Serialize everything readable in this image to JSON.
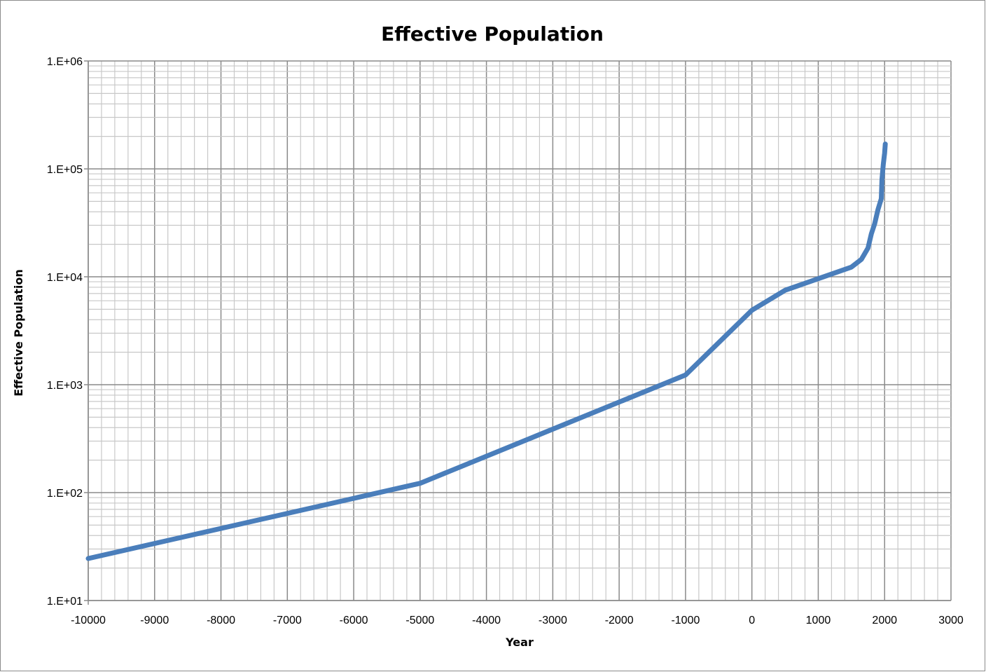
{
  "chart_data": {
    "type": "line",
    "title": "Effective Population",
    "xlabel": "Year",
    "ylabel": "Effective Population",
    "xlim": [
      -10000,
      3000
    ],
    "ylim": [
      10,
      1000000
    ],
    "yscale": "log",
    "grid": true,
    "legend": "none",
    "xticks": [
      "-10000",
      "-9000",
      "-8000",
      "-7000",
      "-6000",
      "-5000",
      "-4000",
      "-3000",
      "-2000",
      "-1000",
      "0",
      "1000",
      "2000",
      "3000"
    ],
    "yticks": [
      "1.E+01",
      "1.E+02",
      "1.E+03",
      "1.E+04",
      "1.E+05",
      "1.E+06"
    ],
    "series_color": "#4A7EBB",
    "x": [
      -10000,
      -5000,
      -1000,
      0,
      500,
      1000,
      1500,
      1650,
      1750,
      1800,
      1850,
      1900,
      1950,
      1960,
      1980,
      2000,
      2010
    ],
    "y": [
      24.5,
      122,
      1230,
      4900,
      7500,
      9600,
      12300,
      14500,
      18500,
      25000,
      31000,
      42000,
      53000,
      80000,
      110000,
      140000,
      170000
    ]
  }
}
